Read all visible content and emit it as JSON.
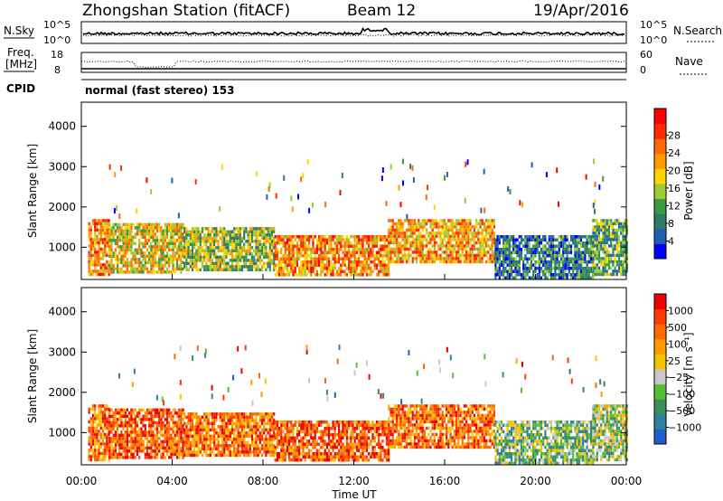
{
  "header": {
    "station": "Zhongshan Station (fitACF)",
    "beam": "Beam 12",
    "date": "19/Apr/2016"
  },
  "noise_panel": {
    "left_label": "N.Sky",
    "left_ticks": [
      "10^5",
      "10^0"
    ],
    "right_label": "N.Search",
    "right_ticks": [
      "10^5",
      "10^0"
    ]
  },
  "freq_panel": {
    "left_label_1": "Freq.",
    "left_label_2": "[MHz]",
    "left_ticks": [
      "18",
      "8"
    ],
    "right_label": "Nave",
    "right_ticks": [
      "60",
      "0"
    ]
  },
  "cpid": {
    "label": "CPID",
    "value": "normal (fast stereo) 153"
  },
  "chart_data": [
    {
      "type": "heatmap",
      "name": "Power",
      "ylabel": "Slant Range [km]",
      "xlabel": "",
      "x_ticks": [
        "00:00",
        "04:00",
        "08:00",
        "12:00",
        "16:00",
        "20:00",
        "00:00"
      ],
      "y_ticks": [
        1000,
        2000,
        3000,
        4000
      ],
      "ylim": [
        200,
        4600
      ],
      "xlim_hours": [
        0,
        24
      ],
      "colorbar": {
        "label": "Power [dB]",
        "ticks": [
          "4",
          "8",
          "12",
          "16",
          "20",
          "24",
          "28"
        ],
        "colors": [
          "#0000ff",
          "#1f5fb0",
          "#2e7a6a",
          "#3c9a3c",
          "#9acd32",
          "#ffd400",
          "#ff9a00",
          "#ff6a00",
          "#ff2a00",
          "#ff0000"
        ]
      },
      "echo_regions": [
        {
          "t": [
            0.3,
            1.2
          ],
          "r": [
            350,
            1700
          ],
          "level": 0.7
        },
        {
          "t": [
            1.2,
            4.5
          ],
          "r": [
            400,
            1600
          ],
          "level": 0.55
        },
        {
          "t": [
            4.5,
            8.5
          ],
          "r": [
            400,
            1500
          ],
          "level": 0.45
        },
        {
          "t": [
            8.5,
            13.5
          ],
          "r": [
            350,
            1300
          ],
          "level": 0.7
        },
        {
          "t": [
            13.5,
            18.2
          ],
          "r": [
            600,
            1700
          ],
          "level": 0.65
        },
        {
          "t": [
            18.2,
            22.5
          ],
          "r": [
            250,
            1300
          ],
          "level": 0.25
        },
        {
          "t": [
            22.5,
            24
          ],
          "r": [
            300,
            1700
          ],
          "level": 0.35
        }
      ]
    },
    {
      "type": "heatmap",
      "name": "Velocity",
      "ylabel": "Slant Range [km]",
      "xlabel": "Time UT",
      "x_ticks": [
        "00:00",
        "04:00",
        "08:00",
        "12:00",
        "16:00",
        "20:00",
        "00:00"
      ],
      "y_ticks": [
        1000,
        2000,
        3000,
        4000
      ],
      "ylim": [
        200,
        4600
      ],
      "xlim_hours": [
        0,
        24
      ],
      "colorbar": {
        "label": "Velocity [m s⁻¹]",
        "ticks": [
          "1000",
          "500",
          "100",
          "25",
          "−25",
          "−100",
          "−500",
          "−1000"
        ],
        "colors": [
          "#1f5fd0",
          "#2f7fa0",
          "#3c8f5a",
          "#55c030",
          "#c8c8c8",
          "#f4c400",
          "#ff9a00",
          "#ff6a00",
          "#ff3a00",
          "#ee0000"
        ]
      },
      "echo_regions": [
        {
          "t": [
            0.3,
            1.2
          ],
          "r": [
            350,
            1700
          ],
          "level": 0.75
        },
        {
          "t": [
            1.2,
            4.5
          ],
          "r": [
            400,
            1600
          ],
          "level": 0.8
        },
        {
          "t": [
            4.5,
            8.5
          ],
          "r": [
            400,
            1500
          ],
          "level": 0.75
        },
        {
          "t": [
            8.5,
            13.5
          ],
          "r": [
            350,
            1300
          ],
          "level": 0.8
        },
        {
          "t": [
            13.5,
            18.2
          ],
          "r": [
            600,
            1700
          ],
          "level": 0.75
        },
        {
          "t": [
            18.2,
            22.5
          ],
          "r": [
            250,
            1300
          ],
          "level": 0.35
        },
        {
          "t": [
            22.5,
            24
          ],
          "r": [
            300,
            1700
          ],
          "level": 0.4
        }
      ]
    }
  ]
}
